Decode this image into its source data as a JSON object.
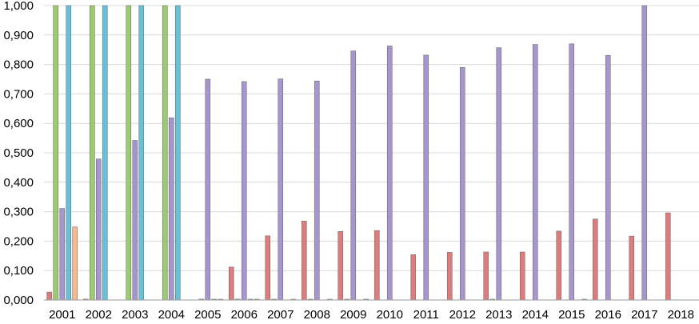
{
  "chart_data": {
    "type": "bar",
    "title": "",
    "xlabel": "",
    "ylabel": "",
    "ylim": [
      0,
      1.0
    ],
    "yticks": [
      "0,000",
      "0,100",
      "0,200",
      "0,300",
      "0,400",
      "0,500",
      "0,600",
      "0,700",
      "0,800",
      "0,900",
      "1,000"
    ],
    "ytick_values": [
      0,
      0.1,
      0.2,
      0.3,
      0.4,
      0.5,
      0.6,
      0.7,
      0.8,
      0.9,
      1.0
    ],
    "grid": true,
    "legend": "none",
    "categories": [
      "2001",
      "2002",
      "2003",
      "2004",
      "2005",
      "2006",
      "2007",
      "2008",
      "2009",
      "2010",
      "2011",
      "2012",
      "2013",
      "2014",
      "2015",
      "2016",
      "2017",
      "2018"
    ],
    "series": [
      {
        "color": "#e07b7b",
        "values": [
          0.027,
          0.003,
          0.0,
          0.0,
          0.0,
          0.112,
          0.218,
          0.268,
          0.233,
          0.236,
          0.154,
          0.162,
          0.163,
          0.163,
          0.234,
          0.275,
          0.217,
          0.296
        ]
      },
      {
        "color": "#9ccc6e",
        "values": [
          1.0,
          1.0,
          1.0,
          1.0,
          0.003,
          0.003,
          0.002,
          0.002,
          0.002,
          0.0,
          0.0,
          0.0,
          0.002,
          0.0,
          0.0,
          0.0,
          0.0,
          0.0
        ]
      },
      {
        "color": "#a795cf",
        "values": [
          0.311,
          0.479,
          0.542,
          0.619,
          0.75,
          0.742,
          0.751,
          0.744,
          0.846,
          0.863,
          0.832,
          0.79,
          0.857,
          0.868,
          0.87,
          0.831,
          1.0,
          0.0
        ]
      },
      {
        "color": "#64c3da",
        "values": [
          1.0,
          1.0,
          1.0,
          1.0,
          0.002,
          0.002,
          0.0,
          0.0,
          0.0,
          0.0,
          0.0,
          0.0,
          0.0,
          0.0,
          0.0,
          0.0,
          0.0,
          0.0
        ]
      },
      {
        "color": "#f9b98a",
        "values": [
          0.248,
          0.0,
          0.0,
          0.0,
          0.002,
          0.002,
          0.002,
          0.002,
          0.002,
          0.0,
          0.0,
          0.0,
          0.0,
          0.0,
          0.002,
          0.0,
          0.0,
          0.0
        ]
      }
    ]
  }
}
